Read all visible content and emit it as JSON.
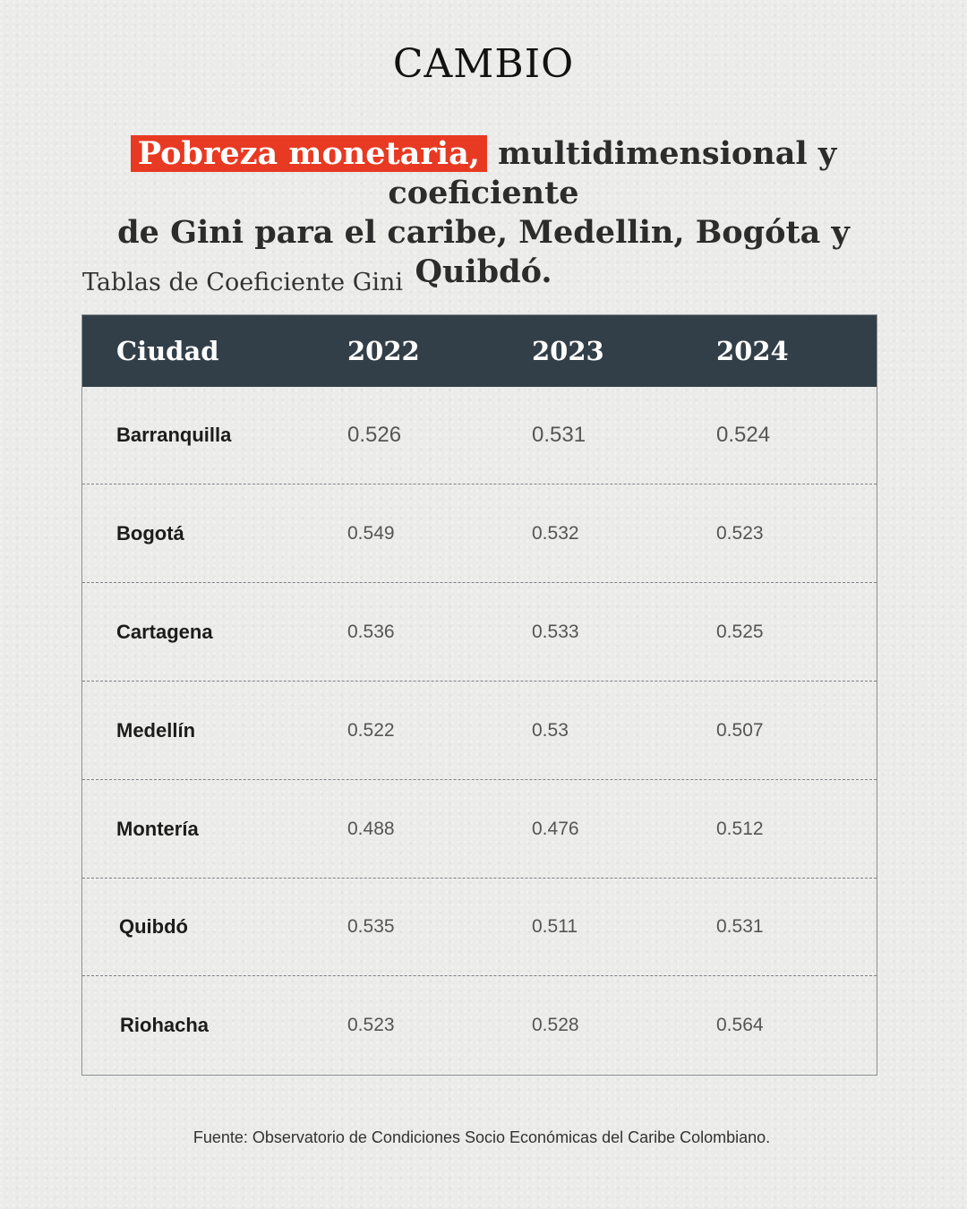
{
  "brand": "CAMBIO",
  "headline": {
    "highlight": "Pobreza monetaria,",
    "rest_line1": " multidimensional y coeficiente",
    "line2": "de Gini para el caribe, Medellin, Bogóta y Quibdó."
  },
  "table_caption": "Tablas de Coeficiente Gini",
  "chart_data": {
    "type": "table",
    "title": "Tablas de Coeficiente Gini",
    "columns": [
      "Ciudad",
      "2022",
      "2023",
      "2024"
    ],
    "rows": [
      {
        "city": "Barranquilla",
        "values": [
          "0.526",
          "0.531",
          "0.524"
        ]
      },
      {
        "city": "Bogotá",
        "values": [
          "0.549",
          "0.532",
          "0.523"
        ]
      },
      {
        "city": "Cartagena",
        "values": [
          "0.536",
          "0.533",
          "0.525"
        ]
      },
      {
        "city": "Medellín",
        "values": [
          "0.522",
          "0.53",
          "0.507"
        ]
      },
      {
        "city": "Montería",
        "values": [
          "0.488",
          "0.476",
          "0.512"
        ]
      },
      {
        "city": "Quibdó",
        "values": [
          "0.535",
          "0.511",
          "0.531"
        ]
      },
      {
        "city": "Riohacha",
        "values": [
          "0.523",
          "0.528",
          "0.564"
        ]
      }
    ]
  },
  "source": "Fuente: Observatorio de Condiciones Socio Económicas del Caribe Colombiano.",
  "colors": {
    "accent": "#e83a22",
    "header_bg": "#333f48"
  }
}
